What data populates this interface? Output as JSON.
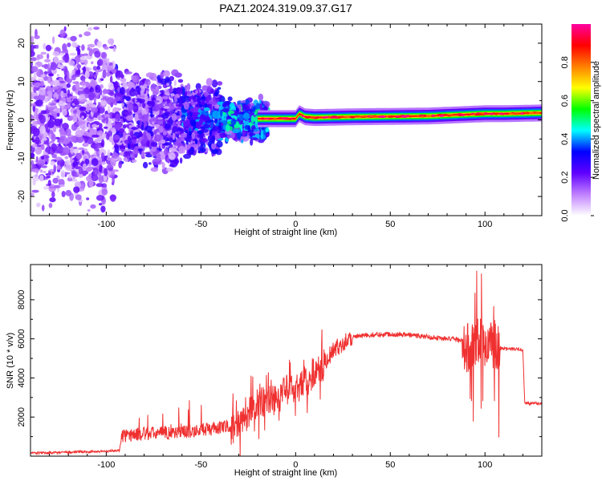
{
  "chart_data": [
    {
      "type": "heatmap",
      "title": "PAZ1.2024.319.09.37.G17",
      "xlabel": "Height of straight line (km)",
      "ylabel": "Frequency (Hz)",
      "xlim": [
        -140,
        130
      ],
      "ylim": [
        -25,
        25
      ],
      "x_ticks": [
        -100,
        -50,
        0,
        50,
        100
      ],
      "y_ticks": [
        -20,
        -10,
        0,
        10,
        20
      ],
      "colorbar": {
        "label": "Normalized spectral amplitude",
        "range": [
          0,
          1
        ],
        "ticks": [
          "0.0",
          "0.2",
          "0.4",
          "0.6",
          "0.8"
        ],
        "colors": [
          "#ffffff",
          "#c080ff",
          "#6000ff",
          "#0000ff",
          "#00ffff",
          "#00ff00",
          "#ffff00",
          "#ff8000",
          "#ff0000",
          "#ff00a0"
        ]
      },
      "ridge": {
        "description_x": [
          -20,
          -10,
          0,
          2,
          5,
          10,
          20,
          30,
          50,
          70,
          90,
          100,
          110,
          120,
          130
        ],
        "freq_hz": [
          0.3,
          0.3,
          0.3,
          1.6,
          0.8,
          0.6,
          0.7,
          0.8,
          0.9,
          1.0,
          1.4,
          1.6,
          1.6,
          1.7,
          1.8
        ]
      }
    },
    {
      "type": "line",
      "xlabel": "Height of straight line (km)",
      "ylabel": "SNR (10 * v/v)",
      "xlim": [
        -140,
        130
      ],
      "ylim": [
        0,
        9800
      ],
      "x_ticks": [
        -100,
        -50,
        0,
        50,
        100
      ],
      "y_ticks": [
        2000,
        4000,
        6000,
        8000
      ],
      "series": [
        {
          "color": "#f03030",
          "x": [
            -140,
            -120,
            -100,
            -93,
            -92,
            -80,
            -60,
            -40,
            -30,
            -25,
            -20,
            -10,
            -5,
            0,
            5,
            10,
            15,
            20,
            25,
            30,
            40,
            50,
            60,
            70,
            80,
            88,
            90,
            95,
            100,
            105,
            108,
            110,
            120,
            121,
            130
          ],
          "y": [
            150,
            200,
            250,
            300,
            900,
            1000,
            1100,
            1300,
            1500,
            2200,
            2700,
            3000,
            3300,
            3600,
            3800,
            4300,
            4800,
            5400,
            5800,
            6100,
            6200,
            6250,
            6200,
            6100,
            6000,
            5950,
            5500,
            5700,
            5800,
            5700,
            5500,
            5500,
            5450,
            2700,
            2700
          ]
        }
      ]
    }
  ]
}
